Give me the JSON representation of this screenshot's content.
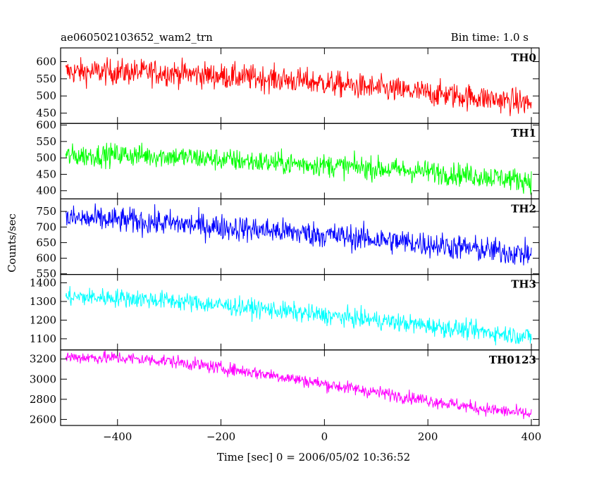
{
  "header": {
    "title": "ae060502103652_wam2_trn",
    "bin_time": "Bin time: 1.0 s"
  },
  "axes": {
    "xlabel": "Time [sec] 0 = 2006/05/02 10:36:52",
    "ylabel": "Counts/sec"
  },
  "chart_data": {
    "type": "line",
    "xlim": [
      -510,
      415
    ],
    "x_ticks": [
      -400,
      -200,
      0,
      200,
      400
    ],
    "x_tick_labels": [
      "−400",
      "−200",
      "0",
      "200",
      "400"
    ],
    "grid": false,
    "panels": [
      {
        "name": "TH0",
        "color": "#ff0000",
        "ylim": [
          420,
          640
        ],
        "y_ticks": [
          450,
          500,
          550,
          600
        ],
        "y_tick_labels": [
          "450",
          "500",
          "550",
          "600"
        ],
        "x": [
          -500,
          -400,
          -300,
          -200,
          -100,
          0,
          100,
          200,
          300,
          400
        ],
        "values": [
          570,
          570,
          568,
          558,
          550,
          538,
          522,
          508,
          495,
          478
        ],
        "noise": 38
      },
      {
        "name": "TH1",
        "color": "#00ff00",
        "ylim": [
          375,
          605
        ],
        "y_ticks": [
          400,
          450,
          500,
          550,
          600
        ],
        "y_tick_labels": [
          "400",
          "450",
          "500",
          "550",
          "600"
        ],
        "x": [
          -500,
          -400,
          -300,
          -200,
          -100,
          0,
          100,
          200,
          300,
          400
        ],
        "values": [
          505,
          510,
          505,
          495,
          485,
          478,
          468,
          458,
          445,
          430
        ],
        "noise": 35
      },
      {
        "name": "TH2",
        "color": "#0000ff",
        "ylim": [
          548,
          790
        ],
        "y_ticks": [
          550,
          600,
          650,
          700,
          750
        ],
        "y_tick_labels": [
          "550",
          "600",
          "650",
          "700",
          "750"
        ],
        "x": [
          -500,
          -400,
          -300,
          -200,
          -100,
          0,
          100,
          200,
          300,
          400
        ],
        "values": [
          728,
          722,
          712,
          700,
          688,
          675,
          660,
          645,
          628,
          612
        ],
        "noise": 42
      },
      {
        "name": "TH3",
        "color": "#00ffff",
        "ylim": [
          1040,
          1445
        ],
        "y_ticks": [
          1100,
          1200,
          1300,
          1400
        ],
        "y_tick_labels": [
          "1100",
          "1200",
          "1300",
          "1400"
        ],
        "x": [
          -500,
          -400,
          -300,
          -200,
          -100,
          0,
          100,
          200,
          300,
          400
        ],
        "values": [
          1325,
          1320,
          1305,
          1280,
          1255,
          1225,
          1200,
          1170,
          1140,
          1110
        ],
        "noise": 50
      },
      {
        "name": "TH0123",
        "color": "#ff00ff",
        "ylim": [
          2540,
          3290
        ],
        "y_ticks": [
          2600,
          2800,
          3000,
          3200
        ],
        "y_tick_labels": [
          "2600",
          "2800",
          "3000",
          "3200"
        ],
        "x": [
          -500,
          -400,
          -300,
          -200,
          -100,
          0,
          100,
          200,
          300,
          400
        ],
        "values": [
          3220,
          3210,
          3180,
          3110,
          3040,
          2950,
          2870,
          2790,
          2710,
          2650
        ],
        "noise": 65
      }
    ]
  }
}
